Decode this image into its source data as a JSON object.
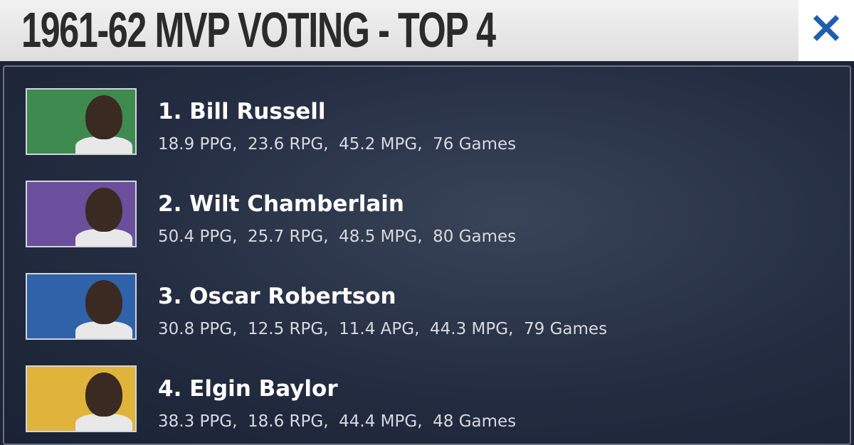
{
  "header": {
    "title": "1961-62 MVP VOTING - TOP 4",
    "close": "×"
  },
  "rows": [
    {
      "name": "1. Bill Russell",
      "stats": "18.9 PPG,  23.6 RPG,  45.2 MPG,  76 Games"
    },
    {
      "name": "2. Wilt Chamberlain",
      "stats": "50.4 PPG,  25.7 RPG,  48.5 MPG,  80 Games"
    },
    {
      "name": "3. Oscar Robertson",
      "stats": "30.8 PPG,  12.5 RPG,  11.4 APG,  44.3 MPG,  79 Games"
    },
    {
      "name": "4. Elgin Baylor",
      "stats": "38.3 PPG,  18.6 RPG,  44.4 MPG,  48 Games"
    }
  ]
}
